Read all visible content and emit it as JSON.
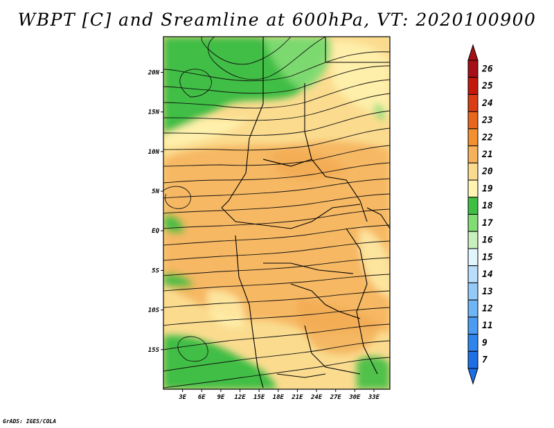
{
  "title": "WBPT [C] and Sreamline at 600hPa, VT: 2020100900",
  "credit": "GrADS: IGES/COLA",
  "chart_data": {
    "type": "heatmap",
    "variable": "WBPT [C] and Sreamline at 600hPa",
    "valid_time": "2020100900",
    "lon_range": [
      0,
      35.5
    ],
    "lat_range": [
      -20,
      24.5
    ],
    "x_ticks": [
      "3E",
      "6E",
      "9E",
      "12E",
      "15E",
      "18E",
      "21E",
      "24E",
      "27E",
      "30E",
      "33E"
    ],
    "x_tick_values": [
      3,
      6,
      9,
      12,
      15,
      18,
      21,
      24,
      27,
      30,
      33
    ],
    "y_ticks": [
      "20N",
      "15N",
      "10N",
      "5N",
      "EQ",
      "5S",
      "10S",
      "15S"
    ],
    "y_tick_values": [
      20,
      15,
      10,
      5,
      0,
      -5,
      -10,
      -15
    ],
    "colorbar": {
      "levels": [
        "7",
        "9",
        "11",
        "12",
        "13",
        "14",
        "15",
        "16",
        "17",
        "18",
        "19",
        "20",
        "21",
        "22",
        "23",
        "24",
        "25",
        "26"
      ],
      "colors": [
        "#1e6ee6",
        "#2f84ee",
        "#4a9bf2",
        "#6fb4f5",
        "#94caf8",
        "#b8defb",
        "#e1f5fc",
        "#c8f0bd",
        "#82dc74",
        "#3fbe44",
        "#fff4b1",
        "#fbdc8f",
        "#f6b15c",
        "#f29030",
        "#e9671d",
        "#da3d14",
        "#c4180c",
        "#a50f15"
      ],
      "triangles": "both"
    },
    "regions": [
      {
        "area": "northwest Sahara",
        "value_range": "16-18",
        "color": "green"
      },
      {
        "area": "southwest Atlantic coast",
        "value_range": "16-18",
        "color": "green"
      },
      {
        "area": "southeast coast",
        "value_range": "16-18",
        "color": "green"
      },
      {
        "area": "central Africa band",
        "value_range": "20-21",
        "color": "orange"
      },
      {
        "area": "background",
        "value_range": "19-20",
        "color": "light yellow"
      }
    ],
    "streamlines": "mostly easterly flow with northern and southern circulation features"
  }
}
